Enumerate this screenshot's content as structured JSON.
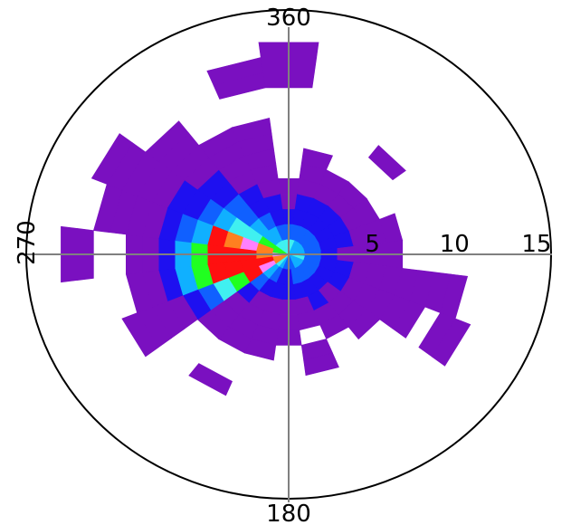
{
  "chart_data": {
    "type": "heatmap",
    "subtype": "polar-rose",
    "direction_labels": {
      "north": "360",
      "west": "270",
      "south": "180"
    },
    "radial_ticks": [
      "5",
      "10",
      "15"
    ],
    "radial_tick_values": [
      5,
      10,
      15
    ],
    "radial_max": 16,
    "sector_width_deg": 15,
    "ring_width": 1,
    "grid": true,
    "palette": {
      "1": "#7a10c0",
      "2": "#1e10f0",
      "3": "#1060ff",
      "4": "#10b0ff",
      "5": "#40f0f0",
      "6": "#20ff20",
      "7": "#ff80ff",
      "8": "#ff8020",
      "9": "#ff1010"
    },
    "sectors": [
      {
        "dir": 0,
        "levels": [
          5,
          3,
          2,
          1,
          1,
          0,
          0,
          0,
          0,
          0,
          0,
          1,
          1,
          1
        ]
      },
      {
        "dir": 15,
        "levels": [
          5,
          3,
          2,
          2,
          1,
          1,
          1
        ]
      },
      {
        "dir": 30,
        "levels": [
          4,
          3,
          2,
          2,
          1,
          1
        ]
      },
      {
        "dir": 45,
        "levels": [
          4,
          3,
          2,
          2,
          1,
          1,
          0,
          0,
          1
        ]
      },
      {
        "dir": 60,
        "levels": [
          4,
          3,
          2,
          2,
          1,
          1
        ]
      },
      {
        "dir": 75,
        "levels": [
          4,
          3,
          2,
          2,
          1,
          1,
          1
        ]
      },
      {
        "dir": 90,
        "levels": [
          4,
          3,
          2,
          1,
          1,
          1,
          1
        ]
      },
      {
        "dir": 105,
        "levels": [
          5,
          3,
          2,
          2,
          1,
          1,
          1,
          1,
          1,
          1,
          1
        ]
      },
      {
        "dir": 120,
        "levels": [
          4,
          3,
          2,
          2,
          1,
          1,
          1,
          1,
          1,
          0,
          1,
          1
        ]
      },
      {
        "dir": 135,
        "levels": [
          4,
          3,
          2,
          1,
          1,
          1,
          1
        ]
      },
      {
        "dir": 150,
        "levels": [
          4,
          3,
          2,
          2,
          1,
          1
        ]
      },
      {
        "dir": 165,
        "levels": [
          3,
          3,
          2,
          1,
          1,
          0,
          1,
          1
        ]
      },
      {
        "dir": 180,
        "levels": [
          3,
          2,
          2,
          1,
          1,
          1
        ]
      },
      {
        "dir": 195,
        "levels": [
          3,
          2,
          2,
          1,
          1,
          1,
          1
        ]
      },
      {
        "dir": 210,
        "levels": [
          4,
          3,
          2,
          1,
          1,
          1,
          1,
          0,
          0,
          1
        ]
      },
      {
        "dir": 225,
        "levels": [
          5,
          4,
          3,
          2,
          1,
          1,
          1
        ]
      },
      {
        "dir": 240,
        "levels": [
          8,
          7,
          9,
          6,
          5,
          3,
          2,
          1,
          1,
          1,
          1
        ]
      },
      {
        "dir": 255,
        "levels": [
          8,
          9,
          9,
          9,
          9,
          6,
          4,
          2,
          1,
          1
        ]
      },
      {
        "dir": 270,
        "levels": [
          7,
          8,
          9,
          9,
          9,
          6,
          4,
          2,
          1,
          1,
          0,
          0,
          1,
          1
        ]
      },
      {
        "dir": 285,
        "levels": [
          6,
          8,
          7,
          8,
          9,
          4,
          3,
          2,
          1,
          1,
          1,
          1
        ]
      },
      {
        "dir": 300,
        "levels": [
          6,
          6,
          5,
          5,
          4,
          3,
          2,
          2,
          1,
          1,
          1,
          1,
          1
        ]
      },
      {
        "dir": 315,
        "levels": [
          5,
          4,
          4,
          3,
          3,
          2,
          2,
          1,
          1,
          1,
          1
        ]
      },
      {
        "dir": 330,
        "levels": [
          5,
          4,
          3,
          2,
          2,
          1,
          1,
          1,
          1
        ]
      },
      {
        "dir": 345,
        "levels": [
          5,
          3,
          2,
          2,
          1,
          1,
          1,
          1,
          1,
          0,
          0,
          1,
          1
        ]
      }
    ]
  }
}
